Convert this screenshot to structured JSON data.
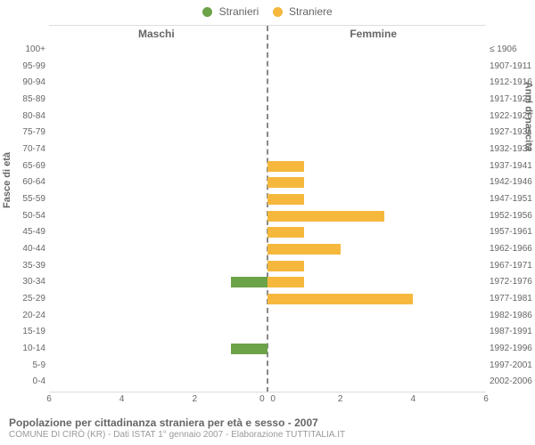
{
  "chart": {
    "type": "population-pyramid",
    "legend": {
      "male": {
        "label": "Stranieri",
        "color": "#6ca248"
      },
      "female": {
        "label": "Straniere",
        "color": "#f5b83d"
      }
    },
    "header_left": "Maschi",
    "header_right": "Femmine",
    "y_left_title": "Fasce di età",
    "y_right_title": "Anni di nascita",
    "x_max": 6,
    "x_ticks_left": [
      6,
      4,
      2,
      0
    ],
    "x_ticks_right": [
      0,
      2,
      4,
      6
    ],
    "grid_color": "#dddddd",
    "background": "#ffffff",
    "center_line_color": "#888888",
    "label_color": "#666666",
    "label_fontsize": 10,
    "rows": [
      {
        "age": "100+",
        "birth": "≤ 1906",
        "m": 0,
        "f": 0
      },
      {
        "age": "95-99",
        "birth": "1907-1911",
        "m": 0,
        "f": 0
      },
      {
        "age": "90-94",
        "birth": "1912-1916",
        "m": 0,
        "f": 0
      },
      {
        "age": "85-89",
        "birth": "1917-1921",
        "m": 0,
        "f": 0
      },
      {
        "age": "80-84",
        "birth": "1922-1926",
        "m": 0,
        "f": 0
      },
      {
        "age": "75-79",
        "birth": "1927-1931",
        "m": 0,
        "f": 0
      },
      {
        "age": "70-74",
        "birth": "1932-1936",
        "m": 0,
        "f": 0
      },
      {
        "age": "65-69",
        "birth": "1937-1941",
        "m": 0,
        "f": 1
      },
      {
        "age": "60-64",
        "birth": "1942-1946",
        "m": 0,
        "f": 1
      },
      {
        "age": "55-59",
        "birth": "1947-1951",
        "m": 0,
        "f": 1
      },
      {
        "age": "50-54",
        "birth": "1952-1956",
        "m": 0,
        "f": 3.2
      },
      {
        "age": "45-49",
        "birth": "1957-1961",
        "m": 0,
        "f": 1
      },
      {
        "age": "40-44",
        "birth": "1962-1966",
        "m": 0,
        "f": 2
      },
      {
        "age": "35-39",
        "birth": "1967-1971",
        "m": 0,
        "f": 1
      },
      {
        "age": "30-34",
        "birth": "1972-1976",
        "m": 1,
        "f": 1
      },
      {
        "age": "25-29",
        "birth": "1977-1981",
        "m": 0,
        "f": 4
      },
      {
        "age": "20-24",
        "birth": "1982-1986",
        "m": 0,
        "f": 0
      },
      {
        "age": "15-19",
        "birth": "1987-1991",
        "m": 0,
        "f": 0
      },
      {
        "age": "10-14",
        "birth": "1992-1996",
        "m": 1,
        "f": 0
      },
      {
        "age": "5-9",
        "birth": "1997-2001",
        "m": 0,
        "f": 0
      },
      {
        "age": "0-4",
        "birth": "2002-2006",
        "m": 0,
        "f": 0
      }
    ]
  },
  "footer": {
    "title": "Popolazione per cittadinanza straniera per età e sesso - 2007",
    "subtitle": "COMUNE DI CIRÒ (KR) - Dati ISTAT 1° gennaio 2007 - Elaborazione TUTTITALIA.IT"
  }
}
